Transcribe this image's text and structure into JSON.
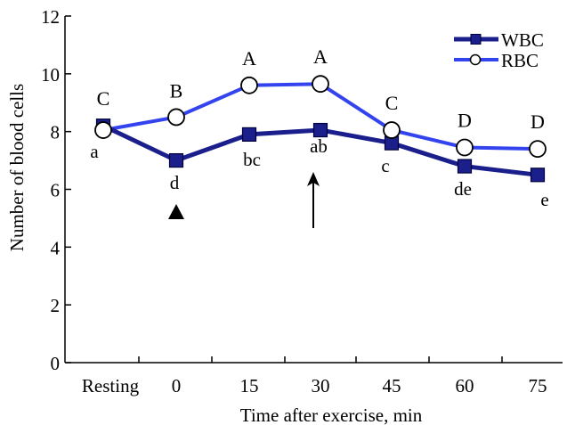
{
  "chart_data": {
    "type": "line",
    "title": "",
    "xlabel": "Time after exercise, min",
    "ylabel": "Number of blood cells",
    "ylim": [
      0,
      12
    ],
    "yticks": [
      "0",
      "2",
      "4",
      "6",
      "8",
      "10",
      "12"
    ],
    "categories": [
      "Resting",
      "0",
      "15",
      "30",
      "45",
      "60",
      "75"
    ],
    "grid": false,
    "legend_position": "top-right",
    "series": [
      {
        "name": "WBC",
        "color": "#1a1f8c",
        "marker": "square",
        "values": [
          8.2,
          7.0,
          7.9,
          8.05,
          7.6,
          6.8,
          6.5
        ],
        "labels": [
          "a",
          "d",
          "bc",
          "ab",
          "c",
          "de",
          "e"
        ]
      },
      {
        "name": "RBC",
        "color": "#3344ee",
        "marker": "circle-open",
        "values": [
          8.05,
          8.5,
          9.6,
          9.65,
          8.05,
          7.45,
          7.4
        ],
        "labels": [
          "C",
          "B",
          "A",
          "A",
          "C",
          "D",
          "D"
        ]
      }
    ],
    "annotations": [
      {
        "type": "triangle-marker",
        "category": "0",
        "symbol": "up-triangle"
      },
      {
        "type": "arrow-up",
        "category": "30"
      }
    ]
  }
}
